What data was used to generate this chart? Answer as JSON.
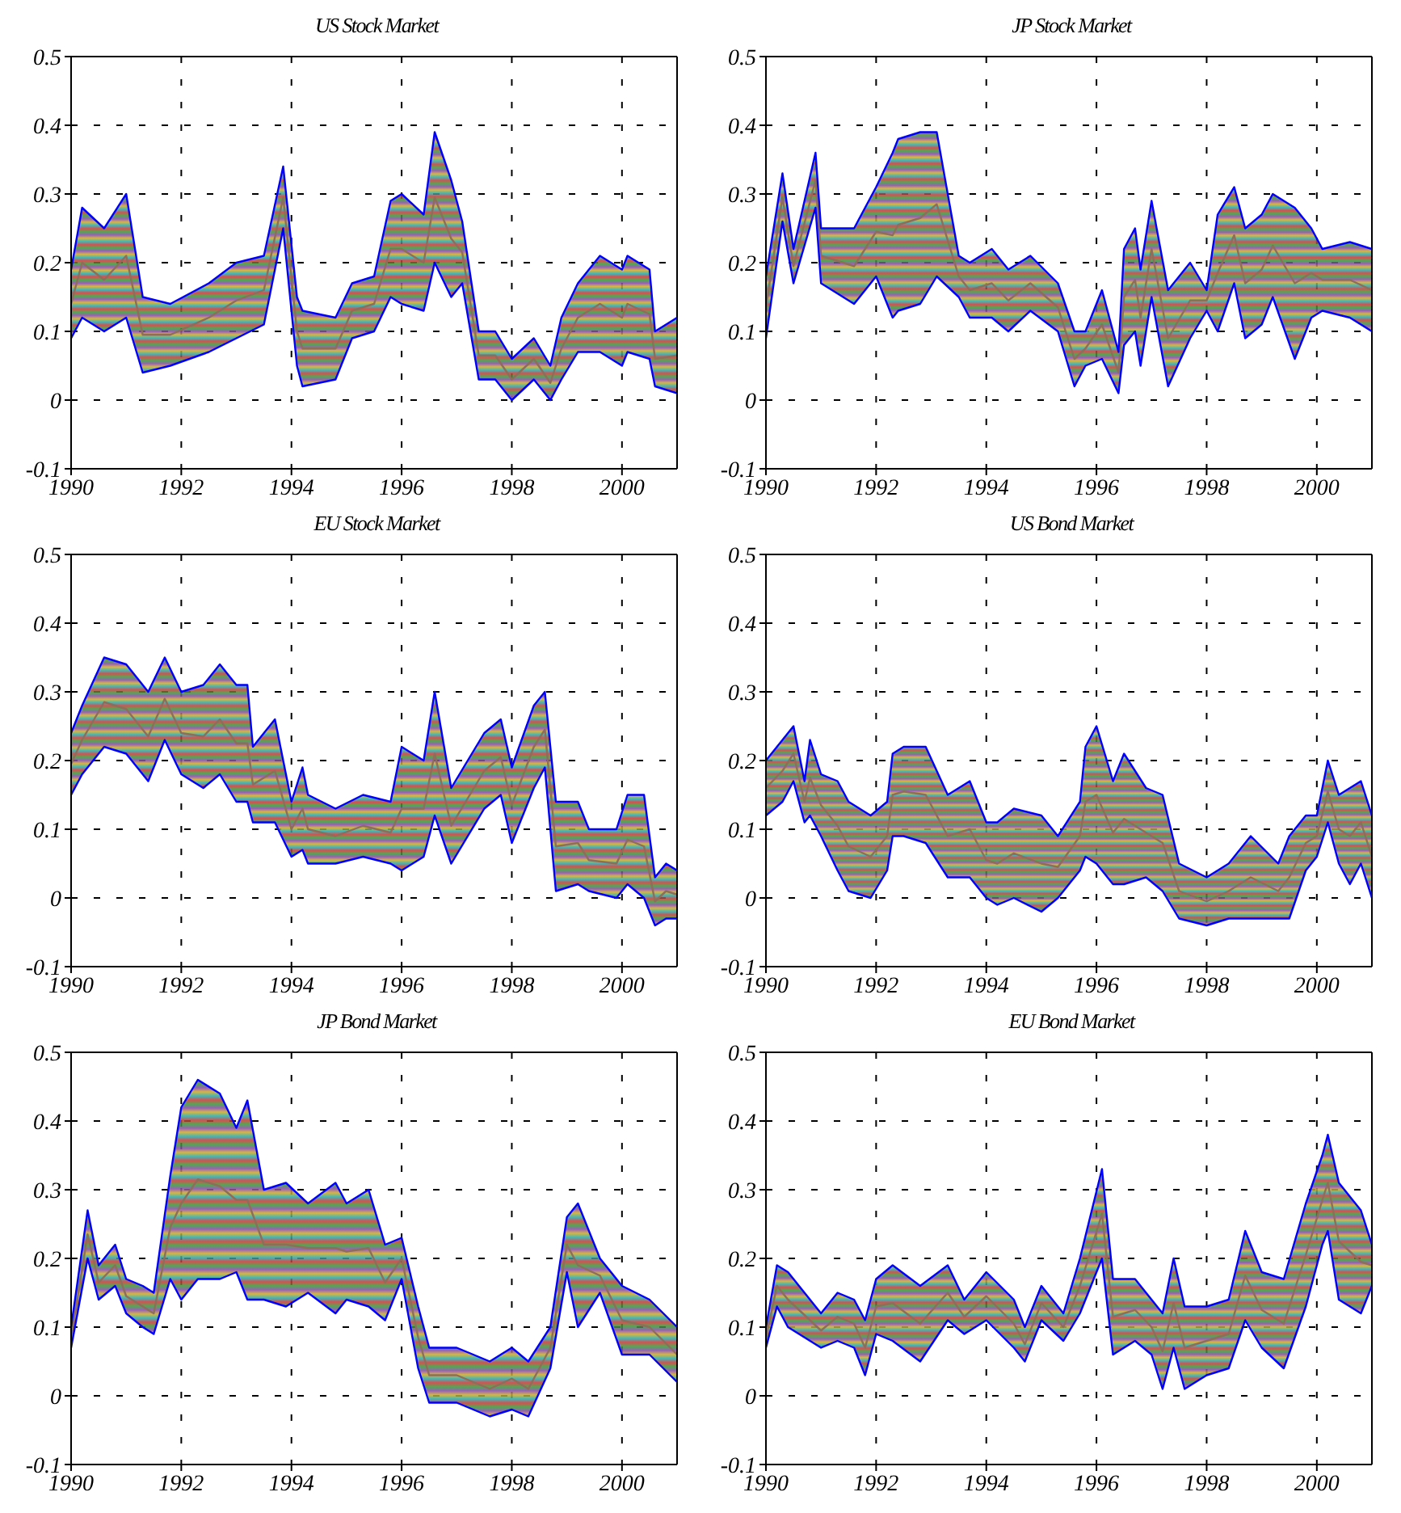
{
  "chart_data": [
    {
      "type": "line",
      "title": "US Stock Market",
      "xlim": [
        1990,
        2001
      ],
      "xticks": [
        1990,
        1992,
        1994,
        1996,
        1998,
        2000
      ],
      "ylim": [
        -0.1,
        0.5
      ],
      "yticks": [
        -0.1,
        0,
        0.1,
        0.2,
        0.3,
        0.4,
        0.5
      ],
      "grid": true,
      "x": [
        1990,
        1990.2,
        1990.6,
        1991,
        1991.3,
        1991.8,
        1992.5,
        1993,
        1993.5,
        1993.85,
        1994.1,
        1994.2,
        1994.8,
        1995.1,
        1995.5,
        1995.8,
        1996,
        1996.4,
        1996.6,
        1996.9,
        1997.1,
        1997.4,
        1997.7,
        1998,
        1998.4,
        1998.7,
        1998.9,
        1999.2,
        1999.6,
        2000,
        2000.1,
        2000.5,
        2000.6,
        2001
      ],
      "series": [
        {
          "color": "#8c6e5a",
          "values": [
            0.14,
            0.2,
            0.175,
            0.21,
            0.095,
            0.095,
            0.12,
            0.145,
            0.16,
            0.295,
            0.1,
            0.075,
            0.075,
            0.13,
            0.14,
            0.22,
            0.22,
            0.2,
            0.295,
            0.235,
            0.215,
            0.065,
            0.065,
            0.03,
            0.06,
            0.025,
            0.075,
            0.12,
            0.14,
            0.12,
            0.14,
            0.125,
            0.06,
            0.065
          ],
          "upper": [
            0.19,
            0.28,
            0.25,
            0.3,
            0.15,
            0.14,
            0.17,
            0.2,
            0.21,
            0.34,
            0.15,
            0.13,
            0.12,
            0.17,
            0.18,
            0.29,
            0.3,
            0.27,
            0.39,
            0.32,
            0.26,
            0.1,
            0.1,
            0.06,
            0.09,
            0.05,
            0.12,
            0.17,
            0.21,
            0.19,
            0.21,
            0.19,
            0.1,
            0.12
          ],
          "lower": [
            0.09,
            0.12,
            0.1,
            0.12,
            0.04,
            0.05,
            0.07,
            0.09,
            0.11,
            0.25,
            0.05,
            0.02,
            0.03,
            0.09,
            0.1,
            0.15,
            0.14,
            0.13,
            0.2,
            0.15,
            0.17,
            0.03,
            0.03,
            0.0,
            0.03,
            0.0,
            0.03,
            0.07,
            0.07,
            0.05,
            0.07,
            0.06,
            0.02,
            0.01
          ]
        },
        {
          "color": "#0000ff",
          "values": [
            0.19,
            0.28,
            0.25,
            0.3,
            0.15,
            0.14,
            0.17,
            0.2,
            0.21,
            0.34,
            0.15,
            0.13,
            0.12,
            0.17,
            0.18,
            0.29,
            0.3,
            0.27,
            0.39,
            0.32,
            0.26,
            0.1,
            0.1,
            0.06,
            0.09,
            0.05,
            0.12,
            0.17,
            0.21,
            0.19,
            0.21,
            0.19,
            0.1,
            0.12
          ]
        },
        {
          "color": "#0000ff",
          "values": [
            0.09,
            0.12,
            0.1,
            0.12,
            0.04,
            0.05,
            0.07,
            0.09,
            0.11,
            0.25,
            0.05,
            0.02,
            0.03,
            0.09,
            0.1,
            0.15,
            0.14,
            0.13,
            0.2,
            0.15,
            0.17,
            0.03,
            0.03,
            0.0,
            0.03,
            0.0,
            0.03,
            0.07,
            0.07,
            0.05,
            0.07,
            0.06,
            0.02,
            0.01
          ]
        }
      ]
    },
    {
      "type": "line",
      "title": "JP Stock Market",
      "xlim": [
        1990,
        2001
      ],
      "xticks": [
        1990,
        1992,
        1994,
        1996,
        1998,
        2000
      ],
      "ylim": [
        -0.1,
        0.5
      ],
      "yticks": [
        -0.1,
        0,
        0.1,
        0.2,
        0.3,
        0.4,
        0.5
      ],
      "grid": true,
      "x": [
        1990,
        1990.3,
        1990.5,
        1990.9,
        1991,
        1991.6,
        1992,
        1992.3,
        1992.4,
        1992.8,
        1993.1,
        1993.5,
        1993.7,
        1994.1,
        1994.4,
        1994.8,
        1995.3,
        1995.6,
        1995.8,
        1996.1,
        1996.4,
        1996.5,
        1996.7,
        1996.8,
        1997,
        1997.3,
        1997.7,
        1998,
        1998.2,
        1998.5,
        1998.7,
        1999,
        1999.2,
        1999.6,
        1999.9,
        2000.1,
        2000.6,
        2001
      ],
      "series": [
        {
          "color": "#8c6e5a",
          "values": [
            0.135,
            0.295,
            0.195,
            0.32,
            0.21,
            0.195,
            0.245,
            0.24,
            0.255,
            0.265,
            0.285,
            0.18,
            0.16,
            0.17,
            0.145,
            0.17,
            0.135,
            0.06,
            0.075,
            0.11,
            0.04,
            0.15,
            0.175,
            0.12,
            0.22,
            0.09,
            0.145,
            0.145,
            0.185,
            0.24,
            0.17,
            0.19,
            0.225,
            0.17,
            0.185,
            0.175,
            0.175,
            0.16
          ],
          "upper": [
            0.18,
            0.33,
            0.22,
            0.36,
            0.25,
            0.25,
            0.31,
            0.36,
            0.38,
            0.39,
            0.39,
            0.21,
            0.2,
            0.22,
            0.19,
            0.21,
            0.17,
            0.1,
            0.1,
            0.16,
            0.07,
            0.22,
            0.25,
            0.19,
            0.29,
            0.16,
            0.2,
            0.16,
            0.27,
            0.31,
            0.25,
            0.27,
            0.3,
            0.28,
            0.25,
            0.22,
            0.23,
            0.22
          ],
          "lower": [
            0.09,
            0.26,
            0.17,
            0.28,
            0.17,
            0.14,
            0.18,
            0.12,
            0.13,
            0.14,
            0.18,
            0.15,
            0.12,
            0.12,
            0.1,
            0.13,
            0.1,
            0.02,
            0.05,
            0.06,
            0.01,
            0.08,
            0.1,
            0.05,
            0.15,
            0.02,
            0.09,
            0.13,
            0.1,
            0.17,
            0.09,
            0.11,
            0.15,
            0.06,
            0.12,
            0.13,
            0.12,
            0.1
          ]
        },
        {
          "color": "#0000ff",
          "values": [
            0.18,
            0.33,
            0.22,
            0.36,
            0.25,
            0.25,
            0.31,
            0.36,
            0.38,
            0.39,
            0.39,
            0.21,
            0.2,
            0.22,
            0.19,
            0.21,
            0.17,
            0.1,
            0.1,
            0.16,
            0.07,
            0.22,
            0.25,
            0.19,
            0.29,
            0.16,
            0.2,
            0.16,
            0.27,
            0.31,
            0.25,
            0.27,
            0.3,
            0.28,
            0.25,
            0.22,
            0.23,
            0.22
          ]
        },
        {
          "color": "#0000ff",
          "values": [
            0.09,
            0.26,
            0.17,
            0.28,
            0.17,
            0.14,
            0.18,
            0.12,
            0.13,
            0.14,
            0.18,
            0.15,
            0.12,
            0.12,
            0.1,
            0.13,
            0.1,
            0.02,
            0.05,
            0.06,
            0.01,
            0.08,
            0.1,
            0.05,
            0.15,
            0.02,
            0.09,
            0.13,
            0.1,
            0.17,
            0.09,
            0.11,
            0.15,
            0.06,
            0.12,
            0.13,
            0.12,
            0.1
          ]
        }
      ]
    },
    {
      "type": "line",
      "title": "EU Stock Market",
      "xlim": [
        1990,
        2001
      ],
      "xticks": [
        1990,
        1992,
        1994,
        1996,
        1998,
        2000
      ],
      "ylim": [
        -0.1,
        0.5
      ],
      "yticks": [
        -0.1,
        0,
        0.1,
        0.2,
        0.3,
        0.4,
        0.5
      ],
      "grid": true,
      "x": [
        1990,
        1990.2,
        1990.6,
        1991,
        1991.4,
        1991.7,
        1992,
        1992.4,
        1992.7,
        1993,
        1993.2,
        1993.3,
        1993.7,
        1994,
        1994.2,
        1994.3,
        1994.8,
        1995.3,
        1995.8,
        1996,
        1996.4,
        1996.6,
        1996.9,
        1997.5,
        1997.8,
        1998,
        1998.4,
        1998.6,
        1998.8,
        1999.2,
        1999.4,
        1999.9,
        2000.1,
        2000.4,
        2000.6,
        2000.8,
        2001
      ],
      "series": [
        {
          "color": "#8c6e5a",
          "values": [
            0.195,
            0.23,
            0.285,
            0.275,
            0.235,
            0.29,
            0.24,
            0.235,
            0.26,
            0.225,
            0.225,
            0.165,
            0.185,
            0.1,
            0.13,
            0.1,
            0.09,
            0.105,
            0.095,
            0.13,
            0.13,
            0.21,
            0.105,
            0.185,
            0.205,
            0.135,
            0.22,
            0.245,
            0.075,
            0.08,
            0.055,
            0.05,
            0.085,
            0.075,
            -0.005,
            0.01,
            0.005
          ],
          "upper": [
            0.24,
            0.28,
            0.35,
            0.34,
            0.3,
            0.35,
            0.3,
            0.31,
            0.34,
            0.31,
            0.31,
            0.22,
            0.26,
            0.14,
            0.19,
            0.15,
            0.13,
            0.15,
            0.14,
            0.22,
            0.2,
            0.3,
            0.16,
            0.24,
            0.26,
            0.19,
            0.28,
            0.3,
            0.14,
            0.14,
            0.1,
            0.1,
            0.15,
            0.15,
            0.03,
            0.05,
            0.04
          ],
          "lower": [
            0.15,
            0.18,
            0.22,
            0.21,
            0.17,
            0.23,
            0.18,
            0.16,
            0.18,
            0.14,
            0.14,
            0.11,
            0.11,
            0.06,
            0.07,
            0.05,
            0.05,
            0.06,
            0.05,
            0.04,
            0.06,
            0.12,
            0.05,
            0.13,
            0.15,
            0.08,
            0.16,
            0.19,
            0.01,
            0.02,
            0.01,
            0.0,
            0.02,
            0.0,
            -0.04,
            -0.03,
            -0.03
          ]
        },
        {
          "color": "#0000ff",
          "values": [
            0.24,
            0.28,
            0.35,
            0.34,
            0.3,
            0.35,
            0.3,
            0.31,
            0.34,
            0.31,
            0.31,
            0.22,
            0.26,
            0.14,
            0.19,
            0.15,
            0.13,
            0.15,
            0.14,
            0.22,
            0.2,
            0.3,
            0.16,
            0.24,
            0.26,
            0.19,
            0.28,
            0.3,
            0.14,
            0.14,
            0.1,
            0.1,
            0.15,
            0.15,
            0.03,
            0.05,
            0.04
          ]
        },
        {
          "color": "#0000ff",
          "values": [
            0.15,
            0.18,
            0.22,
            0.21,
            0.17,
            0.23,
            0.18,
            0.16,
            0.18,
            0.14,
            0.14,
            0.11,
            0.11,
            0.06,
            0.07,
            0.05,
            0.05,
            0.06,
            0.05,
            0.04,
            0.06,
            0.12,
            0.05,
            0.13,
            0.15,
            0.08,
            0.16,
            0.19,
            0.01,
            0.02,
            0.01,
            0.0,
            0.02,
            0.0,
            -0.04,
            -0.03,
            -0.03
          ]
        }
      ]
    },
    {
      "type": "line",
      "title": "US Bond Market",
      "xlim": [
        1990,
        2001
      ],
      "xticks": [
        1990,
        1992,
        1994,
        1996,
        1998,
        2000
      ],
      "ylim": [
        -0.1,
        0.5
      ],
      "yticks": [
        -0.1,
        0,
        0.1,
        0.2,
        0.3,
        0.4,
        0.5
      ],
      "grid": true,
      "x": [
        1990,
        1990.3,
        1990.5,
        1990.7,
        1990.8,
        1991,
        1991.3,
        1991.5,
        1991.9,
        1992.2,
        1992.3,
        1992.5,
        1992.9,
        1993.3,
        1993.7,
        1994,
        1994.2,
        1994.5,
        1995,
        1995.3,
        1995.7,
        1995.8,
        1996,
        1996.3,
        1996.5,
        1996.9,
        1997.2,
        1997.5,
        1998,
        1998.4,
        1998.8,
        1999.3,
        1999.5,
        1999.8,
        2000,
        2000.2,
        2000.4,
        2000.6,
        2000.8,
        2001
      ],
      "series": [
        {
          "color": "#8c6e5a",
          "values": [
            0.16,
            0.185,
            0.21,
            0.14,
            0.175,
            0.135,
            0.105,
            0.075,
            0.06,
            0.09,
            0.15,
            0.155,
            0.15,
            0.09,
            0.1,
            0.055,
            0.05,
            0.065,
            0.05,
            0.045,
            0.09,
            0.14,
            0.15,
            0.095,
            0.115,
            0.095,
            0.08,
            0.01,
            -0.005,
            0.01,
            0.03,
            0.01,
            0.03,
            0.08,
            0.09,
            0.155,
            0.1,
            0.09,
            0.11,
            0.06
          ],
          "upper": [
            0.2,
            0.23,
            0.25,
            0.17,
            0.23,
            0.18,
            0.17,
            0.14,
            0.12,
            0.14,
            0.21,
            0.22,
            0.22,
            0.15,
            0.17,
            0.11,
            0.11,
            0.13,
            0.12,
            0.09,
            0.14,
            0.22,
            0.25,
            0.17,
            0.21,
            0.16,
            0.15,
            0.05,
            0.03,
            0.05,
            0.09,
            0.05,
            0.09,
            0.12,
            0.12,
            0.2,
            0.15,
            0.16,
            0.17,
            0.12
          ],
          "lower": [
            0.12,
            0.14,
            0.17,
            0.11,
            0.12,
            0.09,
            0.04,
            0.01,
            0.0,
            0.04,
            0.09,
            0.09,
            0.08,
            0.03,
            0.03,
            0.0,
            -0.01,
            0.0,
            -0.02,
            0.0,
            0.04,
            0.06,
            0.05,
            0.02,
            0.02,
            0.03,
            0.01,
            -0.03,
            -0.04,
            -0.03,
            -0.03,
            -0.03,
            -0.03,
            0.04,
            0.06,
            0.11,
            0.05,
            0.02,
            0.05,
            0.0
          ]
        },
        {
          "color": "#0000ff",
          "values": [
            0.2,
            0.23,
            0.25,
            0.17,
            0.23,
            0.18,
            0.17,
            0.14,
            0.12,
            0.14,
            0.21,
            0.22,
            0.22,
            0.15,
            0.17,
            0.11,
            0.11,
            0.13,
            0.12,
            0.09,
            0.14,
            0.22,
            0.25,
            0.17,
            0.21,
            0.16,
            0.15,
            0.05,
            0.03,
            0.05,
            0.09,
            0.05,
            0.09,
            0.12,
            0.12,
            0.2,
            0.15,
            0.16,
            0.17,
            0.12
          ]
        },
        {
          "color": "#0000ff",
          "values": [
            0.12,
            0.14,
            0.17,
            0.11,
            0.12,
            0.09,
            0.04,
            0.01,
            0.0,
            0.04,
            0.09,
            0.09,
            0.08,
            0.03,
            0.03,
            0.0,
            -0.01,
            0.0,
            -0.02,
            0.0,
            0.04,
            0.06,
            0.05,
            0.02,
            0.02,
            0.03,
            0.01,
            -0.03,
            -0.04,
            -0.03,
            -0.03,
            -0.03,
            -0.03,
            0.04,
            0.06,
            0.11,
            0.05,
            0.02,
            0.05,
            0.0
          ]
        }
      ]
    },
    {
      "type": "line",
      "title": "JP Bond Market",
      "xlim": [
        1990,
        2001
      ],
      "xticks": [
        1990,
        1992,
        1994,
        1996,
        1998,
        2000
      ],
      "ylim": [
        -0.1,
        0.5
      ],
      "yticks": [
        -0.1,
        0,
        0.1,
        0.2,
        0.3,
        0.4,
        0.5
      ],
      "grid": true,
      "x": [
        1990,
        1990.3,
        1990.5,
        1990.8,
        1991,
        1991.3,
        1991.5,
        1991.8,
        1992,
        1992.3,
        1992.7,
        1993,
        1993.2,
        1993.5,
        1993.9,
        1994.3,
        1994.8,
        1995,
        1995.4,
        1995.7,
        1996,
        1996.3,
        1996.5,
        1997,
        1997.6,
        1998,
        1998.3,
        1998.7,
        1999,
        1999.2,
        1999.6,
        2000,
        2000.5,
        2001
      ],
      "series": [
        {
          "color": "#8c6e5a",
          "values": [
            0.085,
            0.235,
            0.165,
            0.19,
            0.145,
            0.13,
            0.12,
            0.245,
            0.28,
            0.315,
            0.305,
            0.285,
            0.285,
            0.22,
            0.22,
            0.215,
            0.215,
            0.21,
            0.215,
            0.165,
            0.2,
            0.085,
            0.03,
            0.03,
            0.01,
            0.025,
            0.01,
            0.07,
            0.22,
            0.19,
            0.175,
            0.11,
            0.1,
            0.06
          ],
          "upper": [
            0.1,
            0.27,
            0.19,
            0.22,
            0.17,
            0.16,
            0.15,
            0.32,
            0.42,
            0.46,
            0.44,
            0.39,
            0.43,
            0.3,
            0.31,
            0.28,
            0.31,
            0.28,
            0.3,
            0.22,
            0.23,
            0.13,
            0.07,
            0.07,
            0.05,
            0.07,
            0.05,
            0.1,
            0.26,
            0.28,
            0.2,
            0.16,
            0.14,
            0.1
          ],
          "lower": [
            0.07,
            0.2,
            0.14,
            0.16,
            0.12,
            0.1,
            0.09,
            0.17,
            0.14,
            0.17,
            0.17,
            0.18,
            0.14,
            0.14,
            0.13,
            0.15,
            0.12,
            0.14,
            0.13,
            0.11,
            0.17,
            0.04,
            -0.01,
            -0.01,
            -0.03,
            -0.02,
            -0.03,
            0.04,
            0.18,
            0.1,
            0.15,
            0.06,
            0.06,
            0.02
          ]
        },
        {
          "color": "#0000ff",
          "values": [
            0.1,
            0.27,
            0.19,
            0.22,
            0.17,
            0.16,
            0.15,
            0.32,
            0.42,
            0.46,
            0.44,
            0.39,
            0.43,
            0.3,
            0.31,
            0.28,
            0.31,
            0.28,
            0.3,
            0.22,
            0.23,
            0.13,
            0.07,
            0.07,
            0.05,
            0.07,
            0.05,
            0.1,
            0.26,
            0.28,
            0.2,
            0.16,
            0.14,
            0.1
          ]
        },
        {
          "color": "#0000ff",
          "values": [
            0.07,
            0.2,
            0.14,
            0.16,
            0.12,
            0.1,
            0.09,
            0.17,
            0.14,
            0.17,
            0.17,
            0.18,
            0.14,
            0.14,
            0.13,
            0.15,
            0.12,
            0.14,
            0.13,
            0.11,
            0.17,
            0.04,
            -0.01,
            -0.01,
            -0.03,
            -0.02,
            -0.03,
            0.04,
            0.18,
            0.1,
            0.15,
            0.06,
            0.06,
            0.02
          ]
        }
      ]
    },
    {
      "type": "line",
      "title": "EU Bond Market",
      "xlim": [
        1990,
        2001
      ],
      "xticks": [
        1990,
        1992,
        1994,
        1996,
        1998,
        2000
      ],
      "ylim": [
        -0.1,
        0.5
      ],
      "yticks": [
        -0.1,
        0,
        0.1,
        0.2,
        0.3,
        0.4,
        0.5
      ],
      "grid": true,
      "x": [
        1990,
        1990.2,
        1990.4,
        1990.8,
        1991,
        1991.3,
        1991.6,
        1991.8,
        1992,
        1992.3,
        1992.8,
        1993.3,
        1993.6,
        1994,
        1994.5,
        1994.7,
        1995,
        1995.4,
        1995.7,
        1996.1,
        1996.3,
        1996.7,
        1997,
        1997.2,
        1997.4,
        1997.6,
        1998,
        1998.4,
        1998.7,
        1999,
        1999.4,
        1999.8,
        2000.1,
        2000.2,
        2000.4,
        2000.8,
        2001
      ],
      "series": [
        {
          "color": "#8c6e5a",
          "values": [
            0.085,
            0.16,
            0.14,
            0.11,
            0.095,
            0.115,
            0.105,
            0.07,
            0.13,
            0.135,
            0.105,
            0.15,
            0.115,
            0.145,
            0.105,
            0.075,
            0.135,
            0.1,
            0.16,
            0.265,
            0.115,
            0.125,
            0.1,
            0.065,
            0.135,
            0.07,
            0.08,
            0.09,
            0.175,
            0.125,
            0.105,
            0.205,
            0.285,
            0.31,
            0.225,
            0.195,
            0.19
          ],
          "upper": [
            0.1,
            0.19,
            0.18,
            0.14,
            0.12,
            0.15,
            0.14,
            0.11,
            0.17,
            0.19,
            0.16,
            0.19,
            0.14,
            0.18,
            0.14,
            0.1,
            0.16,
            0.12,
            0.2,
            0.33,
            0.17,
            0.17,
            0.14,
            0.12,
            0.2,
            0.13,
            0.13,
            0.14,
            0.24,
            0.18,
            0.17,
            0.28,
            0.35,
            0.38,
            0.31,
            0.27,
            0.22
          ],
          "lower": [
            0.07,
            0.13,
            0.1,
            0.08,
            0.07,
            0.08,
            0.07,
            0.03,
            0.09,
            0.08,
            0.05,
            0.11,
            0.09,
            0.11,
            0.07,
            0.05,
            0.11,
            0.08,
            0.12,
            0.2,
            0.06,
            0.08,
            0.06,
            0.01,
            0.07,
            0.01,
            0.03,
            0.04,
            0.11,
            0.07,
            0.04,
            0.13,
            0.22,
            0.24,
            0.14,
            0.12,
            0.16
          ]
        },
        {
          "color": "#0000ff",
          "values": [
            0.1,
            0.19,
            0.18,
            0.14,
            0.12,
            0.15,
            0.14,
            0.11,
            0.17,
            0.19,
            0.16,
            0.19,
            0.14,
            0.18,
            0.14,
            0.1,
            0.16,
            0.12,
            0.2,
            0.33,
            0.17,
            0.17,
            0.14,
            0.12,
            0.2,
            0.13,
            0.13,
            0.14,
            0.24,
            0.18,
            0.17,
            0.28,
            0.35,
            0.38,
            0.31,
            0.27,
            0.22
          ]
        },
        {
          "color": "#0000ff",
          "values": [
            0.07,
            0.13,
            0.1,
            0.08,
            0.07,
            0.08,
            0.07,
            0.03,
            0.09,
            0.08,
            0.05,
            0.11,
            0.09,
            0.11,
            0.07,
            0.05,
            0.11,
            0.08,
            0.12,
            0.2,
            0.06,
            0.08,
            0.06,
            0.01,
            0.07,
            0.01,
            0.03,
            0.04,
            0.11,
            0.07,
            0.04,
            0.13,
            0.22,
            0.24,
            0.14,
            0.12,
            0.16
          ]
        }
      ]
    }
  ]
}
